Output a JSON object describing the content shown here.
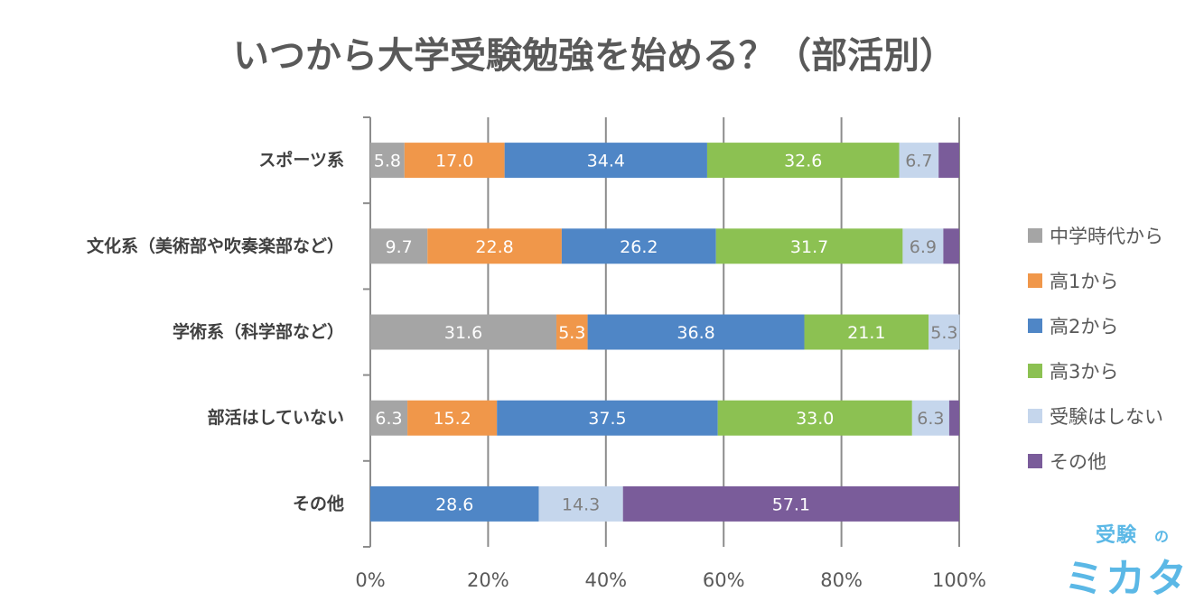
{
  "chart_data": {
    "type": "bar",
    "orientation": "horizontal",
    "stacked": "percent",
    "title": "いつから大学受験勉強を始める？（部活別）",
    "categories": [
      "スポーツ系",
      "文化系（美術部や吹奏楽部など）",
      "学術系（科学部など）",
      "部活はしていない",
      "その他"
    ],
    "series": [
      {
        "name": "中学時代から",
        "color": "#a5a5a5",
        "label_color": "#ffffff",
        "values": [
          5.8,
          9.7,
          31.6,
          6.3,
          0
        ],
        "labels": [
          "5.8",
          "9.7",
          "31.6",
          "6.3",
          ""
        ]
      },
      {
        "name": "高1から",
        "color": "#f0974a",
        "label_color": "#ffffff",
        "values": [
          17.0,
          22.8,
          5.3,
          15.2,
          0
        ],
        "labels": [
          "17.0",
          "22.8",
          "5.3",
          "15.2",
          ""
        ]
      },
      {
        "name": "高2から",
        "color": "#4f86c6",
        "label_color": "#ffffff",
        "values": [
          34.4,
          26.2,
          36.8,
          37.5,
          28.6
        ],
        "labels": [
          "34.4",
          "26.2",
          "36.8",
          "37.5",
          "28.6"
        ]
      },
      {
        "name": "高3から",
        "color": "#8cc152",
        "label_color": "#ffffff",
        "values": [
          32.6,
          31.7,
          21.1,
          33.0,
          0
        ],
        "labels": [
          "32.6",
          "31.7",
          "21.1",
          "33.0",
          ""
        ]
      },
      {
        "name": "受験はしない",
        "color": "#c5d6ec",
        "label_color": "#7f7f7f",
        "values": [
          6.7,
          6.9,
          5.3,
          6.3,
          14.3
        ],
        "labels": [
          "6.7",
          "6.9",
          "5.3",
          "6.3",
          "14.3"
        ]
      },
      {
        "name": "その他",
        "color": "#7a5c9a",
        "label_color": "#ffffff",
        "values": [
          3.5,
          2.7,
          0,
          1.7,
          57.1
        ],
        "labels": [
          "",
          "",
          "",
          "",
          "57.1"
        ]
      }
    ],
    "x_ticks": [
      "0%",
      "20%",
      "40%",
      "60%",
      "80%",
      "100%"
    ],
    "xlim": [
      0,
      100
    ],
    "grid": "vertical",
    "legend_position": "right"
  },
  "logo": {
    "line1": "受験",
    "small": "の",
    "line2": "ミカタ"
  }
}
